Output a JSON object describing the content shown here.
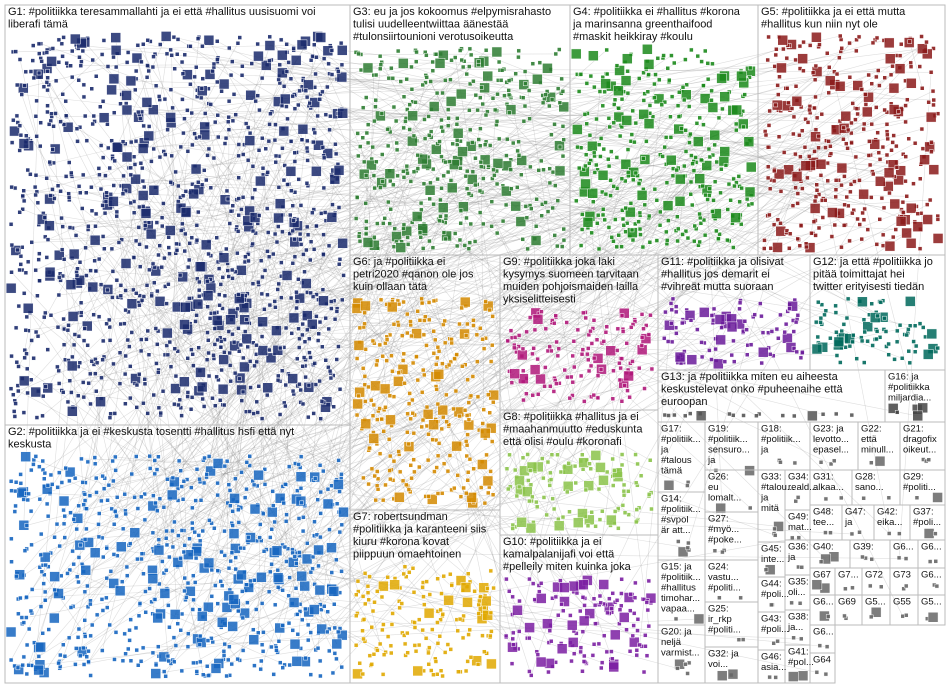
{
  "groups": [
    {
      "label": [
        "G1: #politiikka teresammallahti ja ei että #hallitus uusisuomi voi",
        "liberafi tämä"
      ]
    },
    {
      "label": [
        "G3: eu ja jos kokoomus #elpymisrahasto",
        "tulisi uudelleentwiittaa äänestää",
        "#tulonsiirtounioni verotusoikeutta"
      ]
    },
    {
      "label": [
        "G4: #politiikka ei #hallitus #korona",
        "ja marinsanna greenthaifood",
        "#maskit heikkiray #koulu"
      ]
    },
    {
      "label": [
        "G5: #politiikka ja ei että mutta",
        "#hallitus kun niin nyt ole"
      ]
    },
    {
      "label": [
        "G2: #politiikka ja ei #keskusta tosentti #hallitus hsfi että nyt",
        "keskusta"
      ]
    },
    {
      "label": [
        "G6: ja #politiikka ei",
        "petri2020 #qanon ole jos",
        "kuin ollaan tätä"
      ]
    },
    {
      "label": [
        "G9: #politiikka joka laki",
        "kysymys suomeen tarvitaan",
        "muiden pohjoismaiden lailla",
        "yksiselitteisesti"
      ]
    },
    {
      "label": [
        "G11: #politiikka ja olisivat",
        "#hallitus jos demarit ei",
        "#vihreät mutta suoraan"
      ]
    },
    {
      "label": [
        "G12: ja että #politiikka jo",
        "pitää toimittajat hei",
        "twitter erityisesti tiedän"
      ]
    },
    {
      "label": [
        "G13: ja #politiikka miten eu aiheesta",
        "keskustelevat onko #puheenaihe että",
        "euroopan"
      ]
    },
    {
      "label": [
        "G16: ja",
        "#politiikka",
        "miljardia..."
      ]
    },
    {
      "label": [
        "G8: #politiikka #hallitus ja ei",
        "#maahanmuutto #eduskunta",
        "että olisi #oulu #koronafi"
      ]
    },
    {
      "label": [
        "G7: robertsundman",
        "#politiikka ja karanteeni siis",
        "kiuru #korona kovat",
        "piippuun omaehtoinen"
      ]
    },
    {
      "label": [
        "G10: #politiikka ja ei",
        "kamalpalanijafi voi että",
        "#pelleily miten kuinka joka"
      ]
    },
    {
      "label": [
        "G17:",
        "#politiik...",
        "ja",
        "#talous",
        "tämä"
      ]
    },
    {
      "label": [
        "G14:",
        "#politiik...",
        "#svpol",
        "är att..."
      ]
    },
    {
      "label": [
        "G15: ja",
        "#politiik...",
        "#hallitus",
        "timohar...",
        "vapaa..."
      ]
    },
    {
      "label": [
        "G20: ja",
        "neljä",
        "varmist..."
      ]
    },
    {
      "label": [
        "G19:",
        "#politiik...",
        "sensuro...",
        "ja"
      ]
    },
    {
      "label": [
        "G26:",
        "eu",
        "lomalt..."
      ]
    },
    {
      "label": [
        "G27:",
        "#myö...",
        "#poke..."
      ]
    },
    {
      "label": [
        "G24:",
        "vastu...",
        "#politi..."
      ]
    },
    {
      "label": [
        "G25:",
        "ir_rkp",
        "#politi..."
      ]
    },
    {
      "label": [
        "G32: ja",
        "voi..."
      ]
    },
    {
      "label": [
        "G18:",
        "#politiik...",
        "ja"
      ]
    },
    {
      "label": [
        "G33:",
        "#talou...",
        "ja",
        "mitä"
      ]
    },
    {
      "label": [
        "G34:",
        "reald..."
      ]
    },
    {
      "label": [
        "G49:",
        "mat..."
      ]
    },
    {
      "label": [
        "G45:",
        "inte..."
      ]
    },
    {
      "label": [
        "G36:",
        "ja"
      ]
    },
    {
      "label": [
        "G44:",
        "#poli..."
      ]
    },
    {
      "label": [
        "G35:",
        "oli..."
      ]
    },
    {
      "label": [
        "G43:",
        "#poli..."
      ]
    },
    {
      "label": [
        "G38:",
        "ja..."
      ]
    },
    {
      "label": [
        "G46:",
        "asia..."
      ]
    },
    {
      "label": [
        "G41:",
        "#pol..."
      ]
    },
    {
      "label": [
        "G23: ja",
        "levotto...",
        "epasel..."
      ]
    },
    {
      "label": [
        "G22:",
        "että",
        "minull..."
      ]
    },
    {
      "label": [
        "G21:",
        "dragofix",
        "oikeut..."
      ]
    },
    {
      "label": [
        "G31:",
        "alkaa..."
      ]
    },
    {
      "label": [
        "G28:",
        "sano..."
      ]
    },
    {
      "label": [
        "G29:",
        "#politi..."
      ]
    },
    {
      "label": [
        "G48:",
        "tee..."
      ]
    },
    {
      "label": [
        "G47:",
        "ja"
      ]
    },
    {
      "label": [
        "G42:",
        "eika..."
      ]
    },
    {
      "label": [
        "G37:",
        "#poli..."
      ]
    },
    {
      "label": [
        "G40:"
      ]
    },
    {
      "label": [
        "G39:"
      ]
    },
    {
      "label": [
        "G6..."
      ]
    },
    {
      "label": [
        "G6..."
      ]
    },
    {
      "label": [
        "G67"
      ]
    },
    {
      "label": [
        "G7..."
      ]
    },
    {
      "label": [
        "G72"
      ]
    },
    {
      "label": [
        "G73"
      ]
    },
    {
      "label": [
        "G6..."
      ]
    },
    {
      "label": [
        "G6..."
      ]
    },
    {
      "label": [
        "G69"
      ]
    },
    {
      "label": [
        "G5..."
      ]
    },
    {
      "label": [
        "G55"
      ]
    },
    {
      "label": [
        "G5..."
      ]
    },
    {
      "label": [
        "G6..."
      ]
    },
    {
      "label": [
        "G64"
      ]
    }
  ]
}
